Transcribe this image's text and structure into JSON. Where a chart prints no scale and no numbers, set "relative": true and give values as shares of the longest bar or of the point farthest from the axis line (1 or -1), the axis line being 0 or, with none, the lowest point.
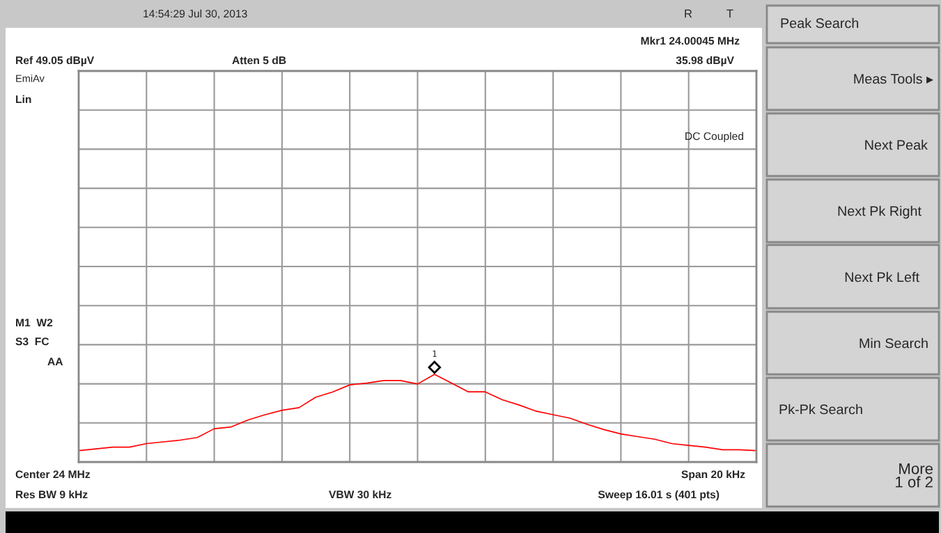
{
  "chart_data": {
    "type": "line",
    "relative": true,
    "grid": true,
    "categories": [
      null,
      null,
      null,
      null,
      null,
      null,
      null,
      null,
      null,
      null,
      null,
      null,
      null,
      null,
      null,
      null,
      null,
      null,
      null,
      null,
      null,
      null,
      null,
      null,
      null,
      null,
      null,
      null,
      null,
      null,
      null,
      null,
      null,
      null,
      null,
      null,
      null,
      null,
      null,
      null,
      null
    ],
    "series": [
      {
        "color": "#ff0000",
        "values": [
          0.13,
          0.15,
          0.17,
          0.17,
          0.21,
          0.23,
          0.25,
          0.28,
          0.38,
          0.4,
          0.48,
          0.54,
          0.59,
          0.62,
          0.74,
          0.8,
          0.88,
          0.9,
          0.93,
          0.93,
          0.89,
          1.0,
          0.9,
          0.8,
          0.8,
          0.71,
          0.65,
          0.58,
          0.54,
          0.5,
          0.43,
          0.37,
          0.32,
          0.29,
          0.26,
          0.21,
          0.19,
          0.17,
          0.14,
          0.14,
          0.13
        ]
      }
    ],
    "annotations": [
      "14:54:29 Jul 30, 2013",
      "R",
      "T",
      "Mkr1 24.00045 MHz",
      "Ref 49.05 dBµV",
      "Atten 5 dB",
      "35.98 dBµV",
      "EmiAv",
      "Lin",
      "DC Coupled",
      "M1  W2",
      "S3  FC",
      "AA",
      "Center 24 MHz",
      "Span 20 kHz",
      "Res BW 9 kHz",
      "VBW 30 kHz",
      "Sweep 16.01 s (401 pts)",
      "1",
      "Peak Search",
      "Meas Tools ▸",
      "Next Peak",
      "Next Pk Right",
      "Next Pk Left",
      "Min Search",
      "Pk-Pk Search",
      "More\n1 of 2"
    ]
  }
}
